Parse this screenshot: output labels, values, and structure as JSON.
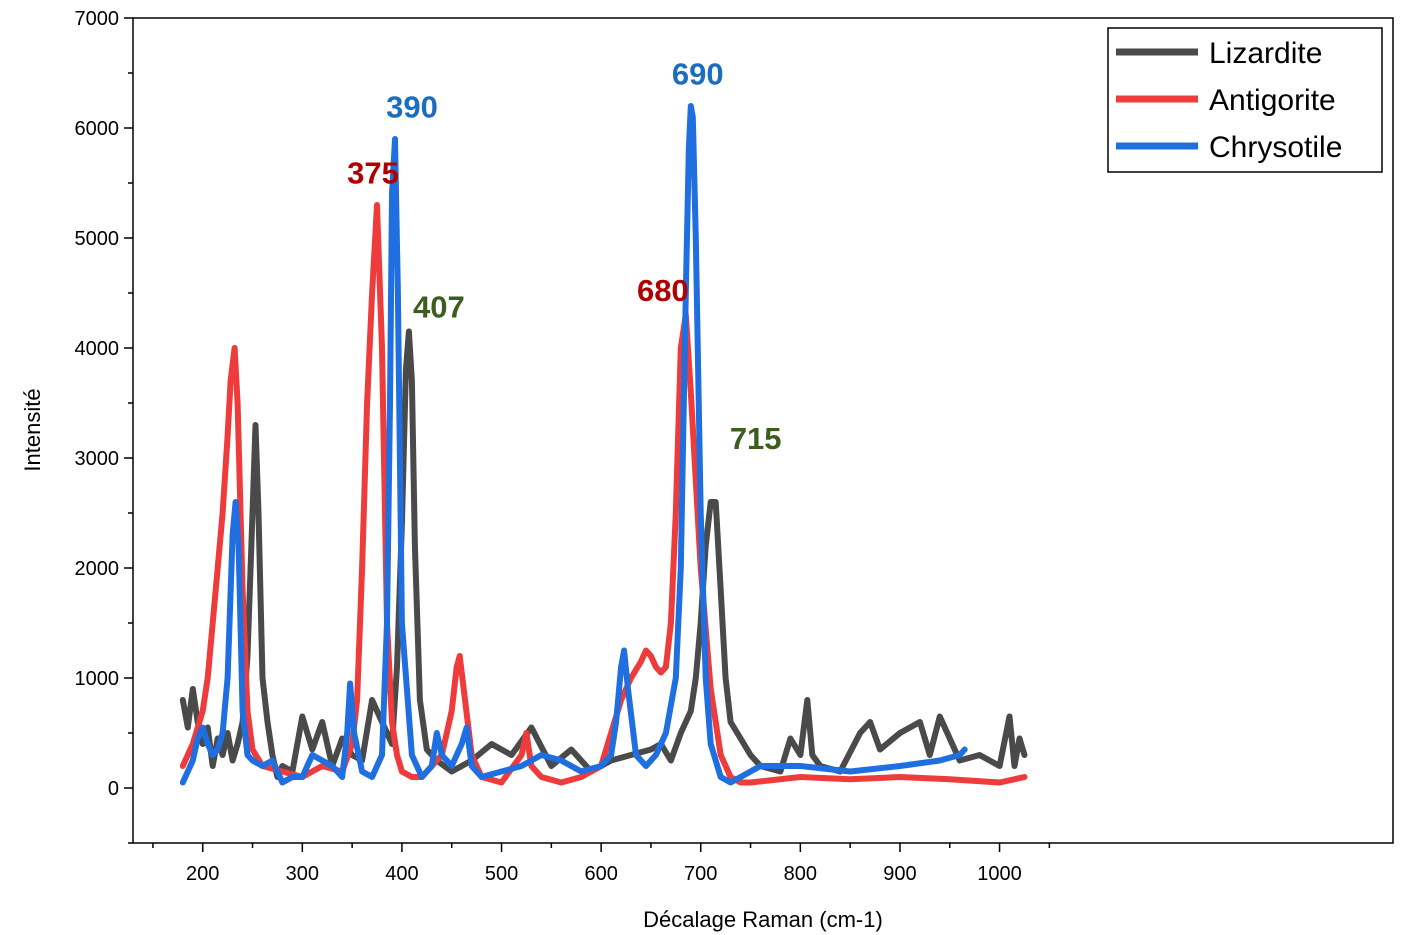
{
  "chart_data": {
    "type": "line",
    "title": "",
    "xlabel": "Décalage Raman (cm-1)",
    "ylabel": "Intensité",
    "xlim": [
      130,
      1395
    ],
    "ylim": [
      -500,
      7000
    ],
    "xticks": [
      200,
      300,
      400,
      500,
      600,
      700,
      800,
      900,
      1000
    ],
    "yticks": [
      0,
      1000,
      2000,
      3000,
      4000,
      5000,
      6000,
      7000
    ],
    "grid": false,
    "legend_position": "top-right",
    "series": [
      {
        "name": "Lizardite",
        "color": "#4a4a4a",
        "x": [
          180,
          185,
          190,
          195,
          200,
          205,
          210,
          215,
          220,
          225,
          230,
          235,
          240,
          245,
          250,
          253,
          256,
          260,
          265,
          270,
          275,
          280,
          290,
          300,
          310,
          320,
          330,
          340,
          350,
          360,
          370,
          380,
          390,
          395,
          400,
          404,
          407,
          410,
          413,
          418,
          425,
          435,
          450,
          470,
          490,
          510,
          530,
          550,
          570,
          590,
          610,
          630,
          650,
          660,
          670,
          680,
          690,
          695,
          700,
          705,
          710,
          715,
          720,
          725,
          730,
          740,
          750,
          760,
          780,
          790,
          800,
          807,
          812,
          820,
          840,
          860,
          870,
          880,
          900,
          920,
          930,
          940,
          960,
          980,
          1000,
          1010,
          1015,
          1020,
          1025
        ],
        "y": [
          800,
          550,
          900,
          600,
          400,
          550,
          200,
          450,
          300,
          500,
          250,
          400,
          600,
          1200,
          2500,
          3300,
          2500,
          1000,
          600,
          300,
          100,
          200,
          150,
          650,
          350,
          600,
          200,
          450,
          300,
          250,
          800,
          600,
          400,
          1100,
          2400,
          3800,
          4150,
          3700,
          2200,
          800,
          350,
          250,
          150,
          250,
          400,
          300,
          550,
          200,
          350,
          150,
          250,
          300,
          350,
          400,
          250,
          500,
          700,
          1000,
          1500,
          2200,
          2600,
          2600,
          1800,
          1000,
          600,
          450,
          300,
          200,
          150,
          450,
          300,
          800,
          300,
          200,
          150,
          500,
          600,
          350,
          500,
          600,
          300,
          650,
          250,
          300,
          200,
          650,
          200,
          450,
          300
        ]
      },
      {
        "name": "Antigorite",
        "color": "#ee3b3b",
        "x": [
          180,
          190,
          200,
          205,
          210,
          215,
          220,
          225,
          228,
          232,
          235,
          240,
          245,
          250,
          260,
          280,
          300,
          320,
          340,
          350,
          355,
          360,
          365,
          370,
          375,
          380,
          385,
          390,
          395,
          400,
          410,
          420,
          440,
          450,
          455,
          458,
          462,
          470,
          480,
          500,
          520,
          525,
          530,
          540,
          560,
          580,
          600,
          610,
          620,
          630,
          640,
          645,
          650,
          655,
          660,
          665,
          670,
          675,
          680,
          685,
          690,
          700,
          710,
          720,
          730,
          740,
          750,
          800,
          850,
          900,
          950,
          1000,
          1025
        ],
        "y": [
          200,
          400,
          700,
          1000,
          1500,
          2000,
          2500,
          3200,
          3700,
          4000,
          3500,
          1800,
          700,
          350,
          200,
          150,
          100,
          200,
          150,
          400,
          800,
          2000,
          3500,
          4500,
          5300,
          4000,
          1500,
          600,
          300,
          150,
          100,
          100,
          300,
          700,
          1100,
          1200,
          900,
          300,
          100,
          50,
          300,
          500,
          200,
          100,
          50,
          100,
          200,
          500,
          800,
          1000,
          1150,
          1250,
          1200,
          1100,
          1050,
          1100,
          1500,
          2500,
          4000,
          4300,
          3600,
          2000,
          900,
          300,
          100,
          50,
          50,
          100,
          80,
          100,
          80,
          50,
          100
        ]
      },
      {
        "name": "Chrysotile",
        "color": "#1f6fe0",
        "x": [
          180,
          190,
          195,
          200,
          205,
          210,
          215,
          220,
          225,
          230,
          233,
          236,
          240,
          245,
          250,
          260,
          270,
          280,
          290,
          300,
          310,
          320,
          330,
          340,
          345,
          348,
          352,
          360,
          370,
          380,
          385,
          388,
          390,
          393,
          396,
          400,
          410,
          420,
          430,
          435,
          440,
          450,
          460,
          465,
          470,
          480,
          500,
          520,
          540,
          560,
          580,
          600,
          610,
          615,
          620,
          623,
          627,
          635,
          645,
          655,
          665,
          675,
          680,
          685,
          688,
          690,
          692,
          695,
          700,
          705,
          710,
          720,
          730,
          740,
          760,
          800,
          850,
          900,
          940,
          960,
          965
        ],
        "y": [
          50,
          250,
          450,
          550,
          400,
          300,
          350,
          500,
          1000,
          2300,
          2600,
          2200,
          700,
          300,
          250,
          200,
          250,
          50,
          100,
          100,
          300,
          250,
          200,
          100,
          500,
          950,
          500,
          150,
          100,
          300,
          1500,
          3500,
          5400,
          5900,
          4500,
          1500,
          300,
          100,
          200,
          500,
          300,
          200,
          400,
          550,
          200,
          100,
          150,
          200,
          300,
          250,
          150,
          200,
          300,
          600,
          1100,
          1250,
          900,
          300,
          200,
          300,
          500,
          1000,
          2000,
          4500,
          5800,
          6200,
          6100,
          5000,
          2500,
          1000,
          400,
          100,
          50,
          100,
          200,
          200,
          150,
          200,
          250,
          300,
          350
        ]
      }
    ],
    "annotations": [
      {
        "text": "375",
        "x": 375,
        "y": 5350,
        "color": "#b00000"
      },
      {
        "text": "390",
        "x": 390,
        "y": 5950,
        "color": "#1a6dbf"
      },
      {
        "text": "407",
        "x": 407,
        "y": 4150,
        "color": "#3b5e1e"
      },
      {
        "text": "680",
        "x": 680,
        "y": 4300,
        "color": "#b00000"
      },
      {
        "text": "690",
        "x": 690,
        "y": 6250,
        "color": "#1a6dbf"
      },
      {
        "text": "715",
        "x": 715,
        "y": 2700,
        "color": "#3b5e1e"
      }
    ]
  }
}
